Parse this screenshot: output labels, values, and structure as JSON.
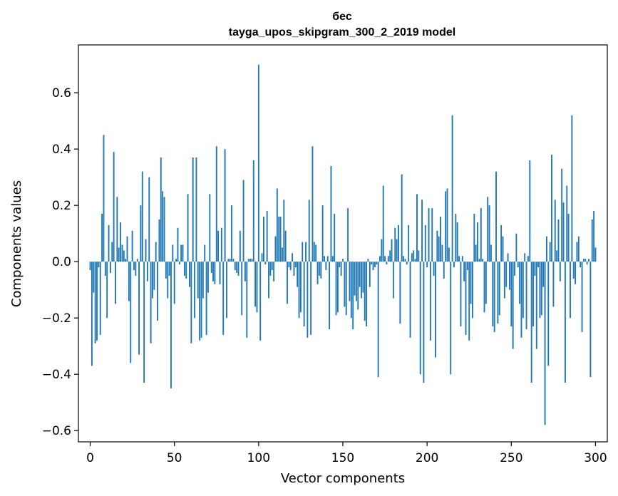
{
  "chart_data": {
    "type": "bar",
    "title": "бес",
    "subtitle": "tayga_upos_skipgram_300_2_2019 model",
    "xlabel": "Vector components",
    "ylabel": "Components values",
    "xlim": [
      -7,
      307
    ],
    "ylim": [
      -0.64,
      0.77
    ],
    "xticks": [
      0,
      50,
      100,
      150,
      200,
      250,
      300
    ],
    "xtick_labels": [
      "0",
      "50",
      "100",
      "150",
      "200",
      "250",
      "300"
    ],
    "yticks": [
      -0.6,
      -0.4,
      -0.2,
      0.0,
      0.2,
      0.4,
      0.6
    ],
    "ytick_labels": [
      "−0.6",
      "−0.4",
      "−0.2",
      "0.0",
      "0.2",
      "0.4",
      "0.6"
    ],
    "bar_color": "#1f77b4",
    "values": [
      -0.03,
      -0.37,
      -0.11,
      -0.29,
      -0.28,
      -0.02,
      -0.26,
      0.17,
      0.45,
      -0.05,
      -0.2,
      0.13,
      -0.04,
      0.07,
      0.39,
      -0.15,
      0.23,
      0.05,
      0.14,
      0.06,
      0.04,
      0.01,
      0.09,
      -0.14,
      -0.36,
      0.11,
      -0.03,
      -0.05,
      0.01,
      -0.33,
      0.2,
      0.32,
      -0.43,
      0.08,
      -0.07,
      0.3,
      -0.29,
      -0.13,
      -0.1,
      0.07,
      -0.21,
      0.15,
      0.37,
      0.25,
      0.23,
      -0.06,
      -0.13,
      -0.05,
      -0.45,
      0.06,
      -0.15,
      0.01,
      0.12,
      -0.01,
      0.06,
      0.06,
      -0.05,
      -0.06,
      0.24,
      -0.09,
      -0.29,
      0.37,
      -0.2,
      0.37,
      -0.13,
      -0.28,
      -0.27,
      -0.13,
      0.06,
      -0.26,
      -0.11,
      0.24,
      -0.04,
      -0.07,
      -0.08,
      0.41,
      0.11,
      -0.08,
      0.12,
      -0.26,
      0.4,
      -0.2,
      0.01,
      0.01,
      0.2,
      0.01,
      -0.03,
      -0.04,
      -0.05,
      0.11,
      -0.19,
      0.29,
      -0.07,
      -0.27,
      0.01,
      0.01,
      0.01,
      0.36,
      -0.16,
      -0.18,
      0.7,
      -0.28,
      0.03,
      0.16,
      -0.01,
      0.18,
      -0.13,
      -0.05,
      -0.03,
      -0.07,
      0.09,
      0.26,
      0.16,
      0.16,
      0.05,
      0.22,
      0.11,
      -0.15,
      -0.02,
      -0.03,
      0.03,
      -0.05,
      -0.02,
      -0.09,
      -0.2,
      -0.18,
      0.07,
      -0.23,
      0.07,
      -0.27,
      0.22,
      -0.26,
      0.41,
      0.07,
      0.06,
      -0.08,
      -0.05,
      -0.06,
      0.2,
      0.02,
      -0.03,
      0.02,
      -0.24,
      0.34,
      0.02,
      0.17,
      -0.19,
      -0.18,
      -0.02,
      -0.05,
      0.01,
      -0.16,
      -0.19,
      0.19,
      -0.14,
      -0.2,
      -0.24,
      -0.12,
      -0.14,
      -0.17,
      -0.09,
      -0.13,
      -0.11,
      -0.21,
      -0.23,
      0.01,
      -0.09,
      -0.01,
      -0.03,
      -0.02,
      -0.01,
      -0.41,
      0.02,
      0.08,
      0.27,
      0.02,
      -0.01,
      0.02,
      0.04,
      0.08,
      -0.13,
      0.12,
      0.08,
      0.13,
      -0.22,
      0.31,
      0.02,
      0.01,
      -0.01,
      0.13,
      -0.27,
      0.03,
      0.04,
      0.01,
      0.24,
      0.04,
      -0.4,
      0.22,
      -0.43,
      0.13,
      -0.02,
      0.19,
      -0.28,
      0.19,
      -0.05,
      -0.34,
      0.11,
      0.09,
      0.16,
      0.06,
      -0.06,
      0.25,
      0.26,
      0.05,
      -0.4,
      0.52,
      -0.02,
      0.17,
      0.14,
      0.02,
      -0.23,
      0.02,
      -0.07,
      -0.26,
      -0.03,
      -0.28,
      -0.15,
      -0.2,
      0.17,
      0.06,
      0.14,
      0.01,
      0.19,
      0.01,
      -0.18,
      -0.15,
      0.23,
      0.2,
      0.06,
      -0.23,
      -0.25,
      0.32,
      -0.22,
      -0.19,
      0.13,
      0.09,
      -0.13,
      -0.09,
      0.03,
      -0.1,
      -0.23,
      -0.31,
      -0.05,
      0.1,
      -0.02,
      -0.15,
      -0.27,
      -0.2,
      0.03,
      -0.24,
      0.02,
      0.36,
      -0.43,
      -0.23,
      -0.05,
      -0.31,
      -0.02,
      -0.2,
      -0.19,
      -0.09,
      -0.58,
      0.09,
      -0.37,
      0.07,
      0.38,
      -0.16,
      0.22,
      0.04,
      0.15,
      -0.07,
      0.33,
      0.21,
      -0.43,
      0.27,
      0.17,
      -0.2,
      0.52,
      -0.06,
      -0.08,
      0.07,
      0.09,
      -0.02,
      -0.25,
      0.01,
      0.01,
      -0.01,
      0.01,
      -0.41,
      0.15,
      0.18,
      0.05
    ]
  }
}
